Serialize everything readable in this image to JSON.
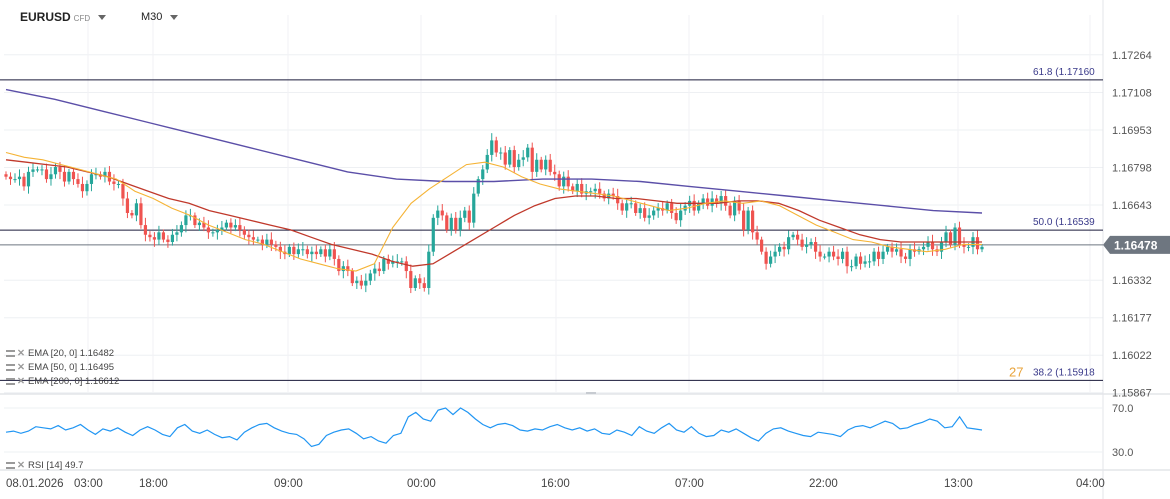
{
  "header": {
    "symbol": "EURUSD",
    "badge": "CFD",
    "timeframe": "M30"
  },
  "indicators": {
    "ema20": "EMA [20, 0] 1.16482",
    "ema50": "EMA [50, 0] 1.16495",
    "ema200": "EMA [200, 0] 1.16612",
    "rsi": "RSI [14] 49.7"
  },
  "colors": {
    "up": "#26a69a",
    "down": "#ef5350",
    "ema20": "#f5b335",
    "ema50": "#c0392b",
    "ema200": "#5b4fa8",
    "rsi": "#2196f3",
    "fib": "#1a1a3a",
    "current": "#6e7680"
  },
  "chart_data": {
    "type": "candlestick",
    "symbol": "EURUSD",
    "timeframe": "M30",
    "y_ticks": [
      "1.17264",
      "1.17108",
      "1.16953",
      "1.16798",
      "1.16643",
      "1.16332",
      "1.16177",
      "1.16022",
      "1.15867"
    ],
    "ylim": [
      1.15867,
      1.17264
    ],
    "x_ticks": [
      "08.01.2026",
      "03:00",
      "18:00",
      "09:00",
      "00:00",
      "16:00",
      "07:00",
      "22:00",
      "13:00",
      "04:00"
    ],
    "current_price": "1.16478",
    "fib_levels": [
      {
        "label": "61.8 (1.17160",
        "value": 1.1716
      },
      {
        "label": "50.0 (1.16539",
        "value": 1.16539
      },
      {
        "label": "38.2 (1.15918",
        "value": 1.15918
      }
    ],
    "overlap_text": "27",
    "closes": [
      1.1676,
      1.1675,
      1.1675,
      1.1676,
      1.1672,
      1.1678,
      1.1679,
      1.1679,
      1.1679,
      1.1675,
      1.1677,
      1.168,
      1.1678,
      1.1674,
      1.1678,
      1.1675,
      1.1673,
      1.167,
      1.1673,
      1.1677,
      1.1677,
      1.1676,
      1.1678,
      1.1674,
      1.1673,
      1.1673,
      1.1667,
      1.1661,
      1.166,
      1.1665,
      1.1656,
      1.1652,
      1.1651,
      1.165,
      1.1653,
      1.165,
      1.1649,
      1.1652,
      1.1653,
      1.1656,
      1.166,
      1.166,
      1.1656,
      1.1657,
      1.1655,
      1.1653,
      1.1653,
      1.1654,
      1.1655,
      1.1657,
      1.1655,
      1.1656,
      1.1654,
      1.1652,
      1.1651,
      1.165,
      1.165,
      1.1648,
      1.165,
      1.1648,
      1.1647,
      1.1645,
      1.1644,
      1.1647,
      1.1644,
      1.1646,
      1.1646,
      1.1644,
      1.1645,
      1.1644,
      1.1646,
      1.1643,
      1.1646,
      1.1642,
      1.1637,
      1.1639,
      1.1637,
      1.1632,
      1.1633,
      1.1631,
      1.1633,
      1.1636,
      1.1638,
      1.1637,
      1.1642,
      1.164,
      1.1641,
      1.1641,
      1.1641,
      1.1637,
      1.163,
      1.1634,
      1.1632,
      1.163,
      1.1645,
      1.1659,
      1.1662,
      1.166,
      1.1654,
      1.1659,
      1.1654,
      1.1659,
      1.1662,
      1.1657,
      1.1669,
      1.1675,
      1.1679,
      1.1685,
      1.1691,
      1.1686,
      1.1686,
      1.1681,
      1.1687,
      1.168,
      1.1683,
      1.1684,
      1.1688,
      1.1678,
      1.1683,
      1.1679,
      1.1683,
      1.1678,
      1.1677,
      1.1672,
      1.1676,
      1.1672,
      1.167,
      1.1673,
      1.1669,
      1.167,
      1.167,
      1.1671,
      1.1669,
      1.1667,
      1.1669,
      1.1668,
      1.1665,
      1.1662,
      1.1665,
      1.1665,
      1.1661,
      1.1663,
      1.1659,
      1.166,
      1.1662,
      1.1663,
      1.1662,
      1.1665,
      1.1661,
      1.1658,
      1.1662,
      1.1664,
      1.1666,
      1.1662,
      1.1665,
      1.1667,
      1.1664,
      1.1667,
      1.1665,
      1.1668,
      1.1664,
      1.166,
      1.1666,
      1.1662,
      1.1654,
      1.1662,
      1.1653,
      1.165,
      1.1645,
      1.164,
      1.1643,
      1.1645,
      1.1647,
      1.1646,
      1.1651,
      1.1652,
      1.165,
      1.1647,
      1.1648,
      1.1649,
      1.1645,
      1.1643,
      1.1643,
      1.1645,
      1.1643,
      1.1642,
      1.1645,
      1.1639,
      1.1639,
      1.1643,
      1.164,
      1.1641,
      1.1641,
      1.1645,
      1.1642,
      1.1645,
      1.1647,
      1.1645,
      1.1646,
      1.1643,
      1.1642,
      1.1646,
      1.1645,
      1.1646,
      1.1647,
      1.1649,
      1.1646,
      1.1645,
      1.1649,
      1.1653,
      1.1648,
      1.1655,
      1.1648,
      1.1647,
      1.1647,
      1.1651,
      1.1646,
      1.1647
    ],
    "ema20": [
      1.1686,
      1.1684,
      1.1683,
      1.1681,
      1.1679,
      1.1677,
      1.1675,
      1.167,
      1.1667,
      1.1663,
      1.166,
      1.1656,
      1.1653,
      1.165,
      1.1648,
      1.1645,
      1.1642,
      1.164,
      1.1638,
      1.1637,
      1.164,
      1.1655,
      1.1665,
      1.1671,
      1.1676,
      1.1681,
      1.1682,
      1.168,
      1.1676,
      1.1673,
      1.1671,
      1.167,
      1.1669,
      1.1668,
      1.1666,
      1.1664,
      1.1662,
      1.1663,
      1.1665,
      1.1666,
      1.1665,
      1.1666,
      1.1664,
      1.166,
      1.1656,
      1.1653,
      1.165,
      1.1649,
      1.1647,
      1.1646,
      1.1645,
      1.1646,
      1.1648,
      1.1648
    ],
    "ema50": [
      1.1683,
      1.1682,
      1.1681,
      1.168,
      1.1678,
      1.1676,
      1.1673,
      1.167,
      1.1667,
      1.1665,
      1.1662,
      1.166,
      1.1658,
      1.1656,
      1.1654,
      1.1651,
      1.1648,
      1.1646,
      1.1644,
      1.1641,
      1.1639,
      1.164,
      1.1645,
      1.165,
      1.1655,
      1.166,
      1.1664,
      1.1667,
      1.1668,
      1.1668,
      1.1667,
      1.1667,
      1.1666,
      1.1665,
      1.1665,
      1.1665,
      1.1666,
      1.1666,
      1.1665,
      1.1662,
      1.1658,
      1.1655,
      1.1652,
      1.165,
      1.1649,
      1.1649,
      1.1649,
      1.1649,
      1.1649
    ],
    "ema200": [
      1.1712,
      1.1708,
      1.1703,
      1.1698,
      1.1693,
      1.1688,
      1.1683,
      1.1678,
      1.1675,
      1.1674,
      1.1674,
      1.1675,
      1.1675,
      1.1674,
      1.1672,
      1.167,
      1.1668,
      1.1666,
      1.1664,
      1.1662,
      1.1661
    ],
    "rsi_ylim": [
      30.0,
      70.0
    ],
    "rsi_ticks": [
      "70.0",
      "30.0"
    ],
    "rsi": [
      48,
      49,
      47,
      49,
      53,
      52,
      51,
      54,
      50,
      52,
      55,
      50,
      46,
      51,
      49,
      52,
      48,
      45,
      50,
      53,
      50,
      46,
      44,
      52,
      55,
      49,
      47,
      50,
      46,
      43,
      44,
      41,
      48,
      52,
      55,
      56,
      52,
      49,
      47,
      46,
      42,
      35,
      37,
      45,
      48,
      50,
      51,
      47,
      42,
      44,
      40,
      38,
      45,
      47,
      62,
      66,
      60,
      58,
      68,
      70,
      64,
      70,
      66,
      60,
      55,
      52,
      55,
      56,
      54,
      50,
      49,
      51,
      50,
      53,
      55,
      52,
      50,
      52,
      49,
      51,
      47,
      46,
      50,
      48,
      45,
      53,
      49,
      47,
      52,
      56,
      50,
      48,
      53,
      47,
      44,
      45,
      50,
      48,
      51,
      47,
      43,
      40,
      47,
      51,
      52,
      49,
      47,
      45,
      44,
      48,
      47,
      46,
      44,
      50,
      53,
      54,
      52,
      55,
      58,
      56,
      51,
      52,
      55,
      57,
      60,
      58,
      52,
      53,
      62,
      52,
      51,
      50
    ]
  }
}
